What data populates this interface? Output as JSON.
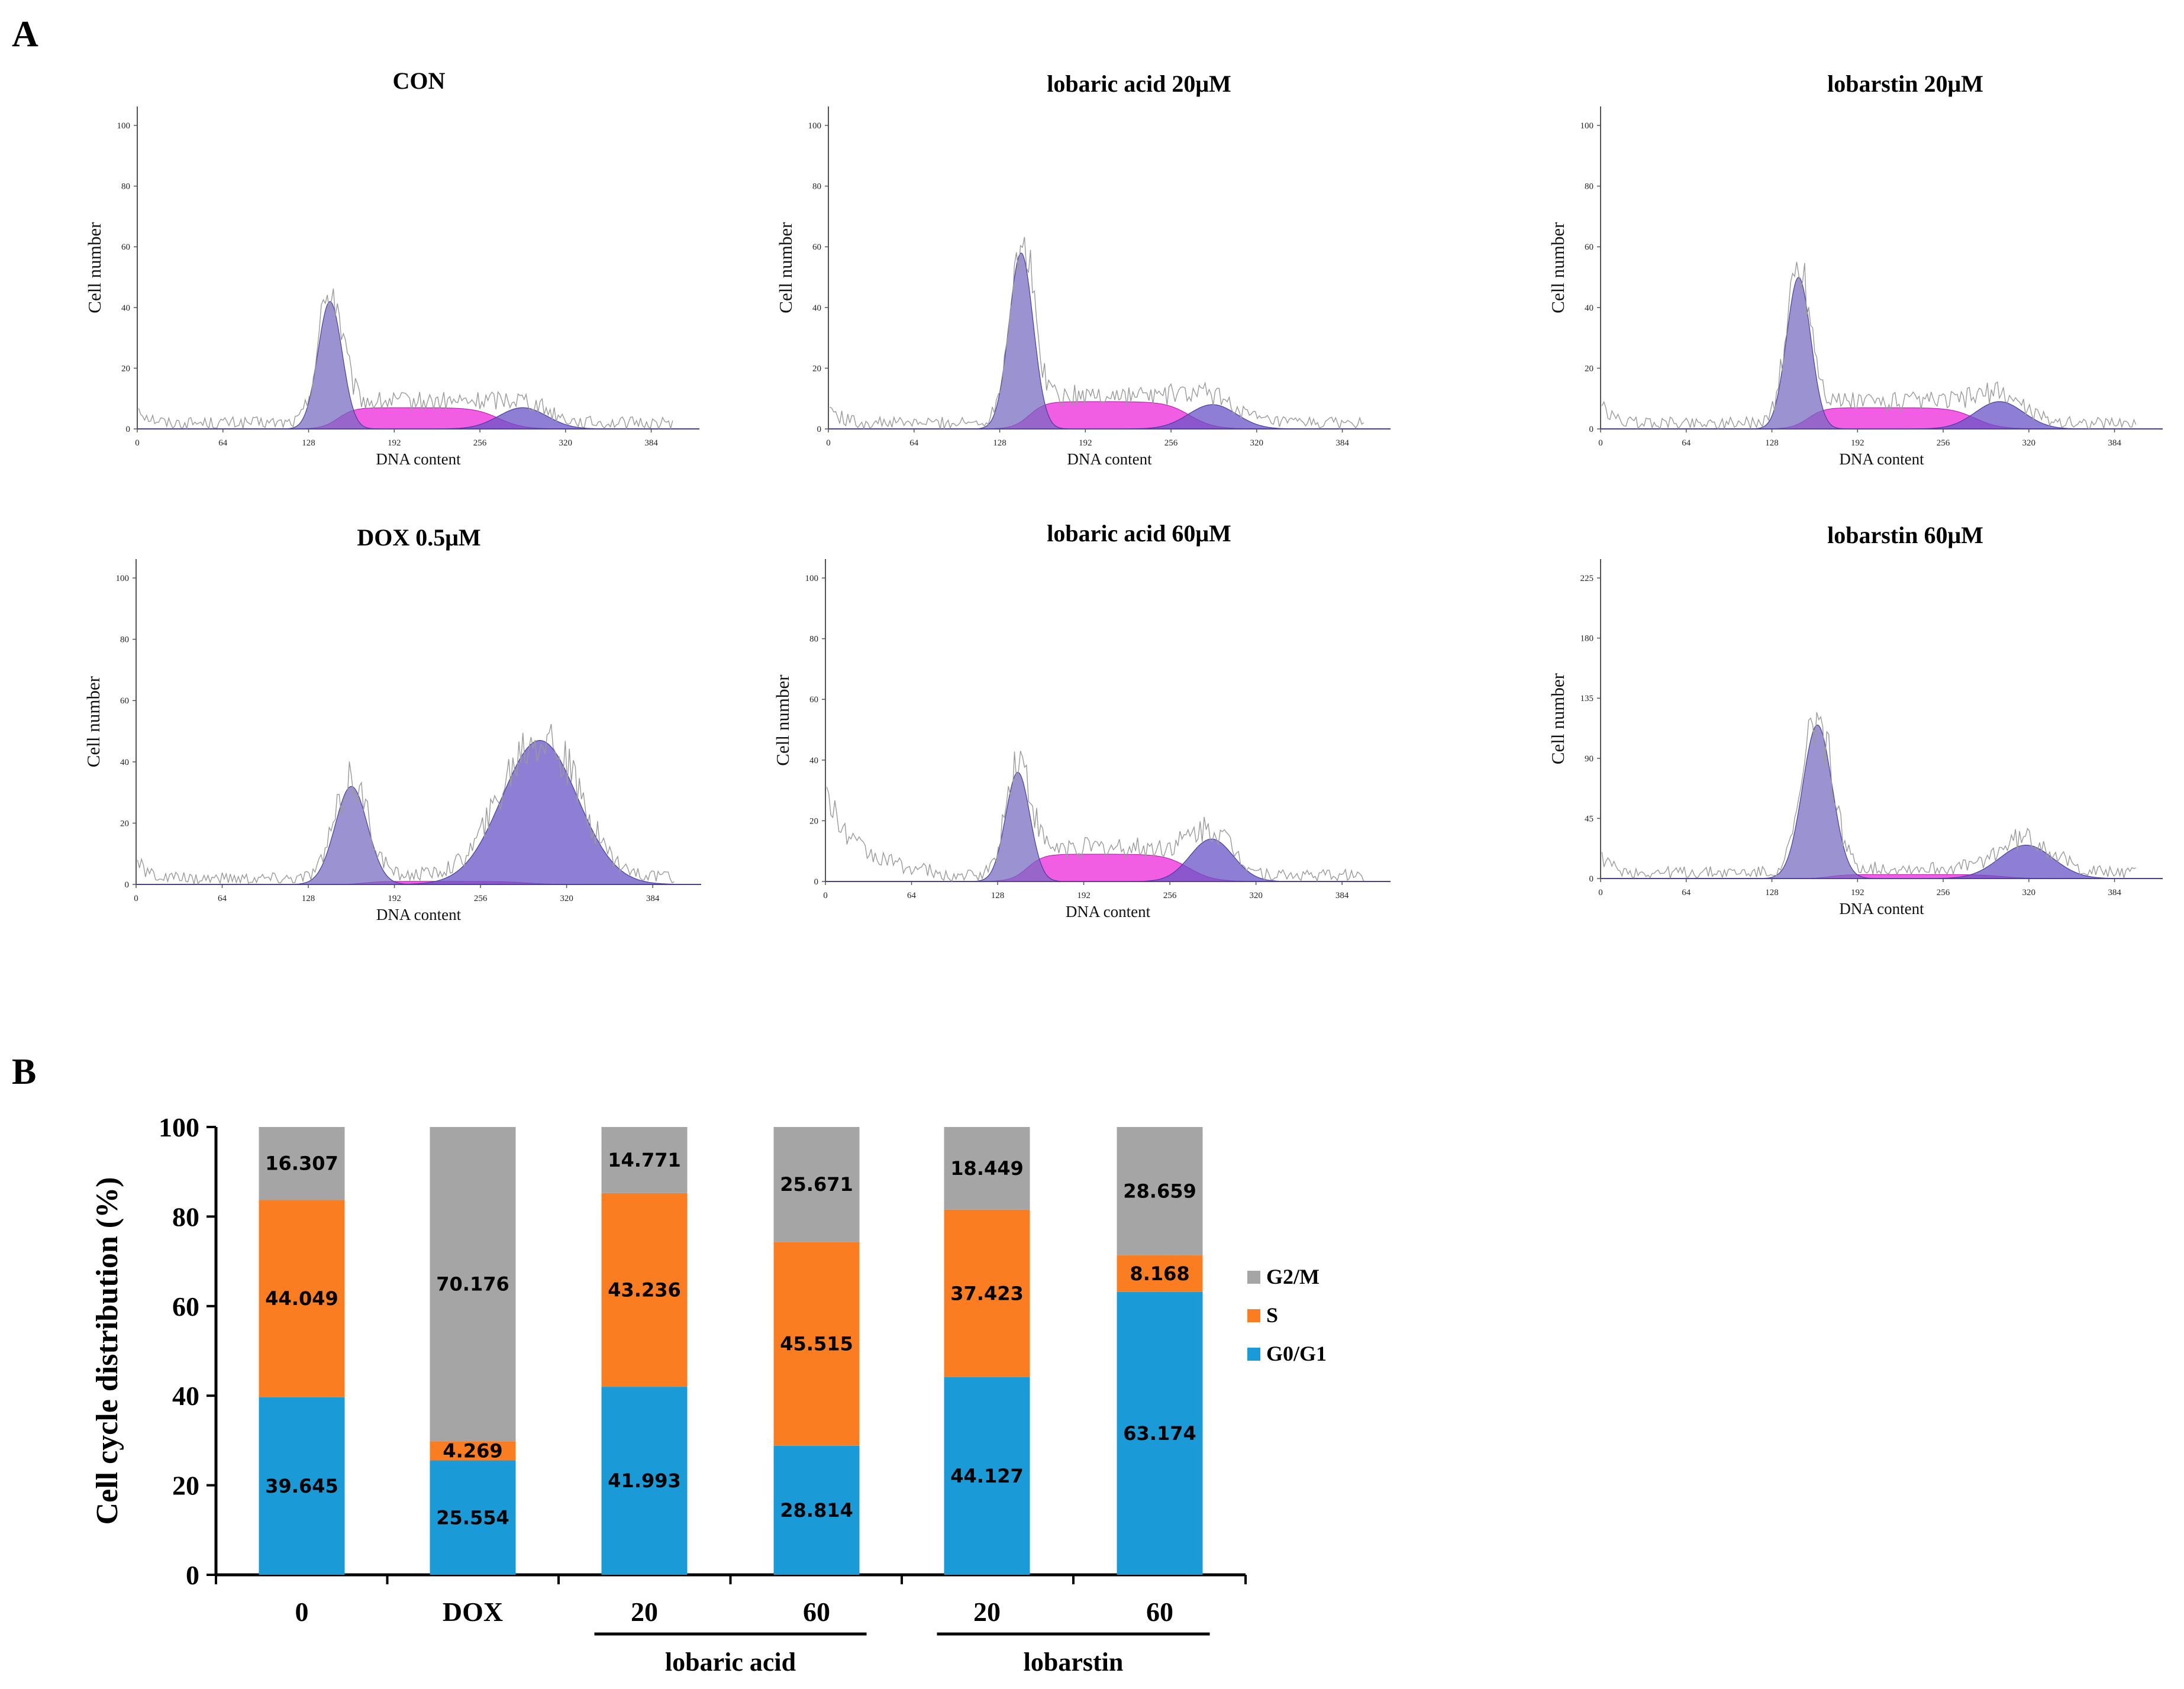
{
  "figure": {
    "panel_a_label": "A",
    "panel_b_label": "B"
  },
  "chart_data": [
    {
      "type": "line",
      "title": "CON",
      "xlabel": "DNA content",
      "ylabel": "Cell number",
      "xticks": [
        "0",
        "64",
        "128",
        "192",
        "256",
        "320",
        "384"
      ],
      "yticks": [
        "0",
        "20",
        "40",
        "60",
        "80",
        "100"
      ],
      "xlim": [
        0,
        420
      ],
      "ylim": [
        0,
        100
      ],
      "components": [
        {
          "phase": "G0/G1",
          "center": 144,
          "height": 42,
          "width": 9
        },
        {
          "phase": "S",
          "start": 150,
          "end": 270,
          "height": 7
        },
        {
          "phase": "G2/M",
          "center": 288,
          "height": 7,
          "width": 18
        }
      ]
    },
    {
      "type": "line",
      "title": "lobaric acid 20μM",
      "xlabel": "DNA content",
      "ylabel": "Cell number",
      "xticks": [
        "0",
        "64",
        "128",
        "192",
        "256",
        "320",
        "384"
      ],
      "yticks": [
        "0",
        "20",
        "40",
        "60",
        "80",
        "100"
      ],
      "xlim": [
        0,
        420
      ],
      "ylim": [
        0,
        100
      ],
      "components": [
        {
          "phase": "G0/G1",
          "center": 144,
          "height": 58,
          "width": 9
        },
        {
          "phase": "S",
          "start": 150,
          "end": 270,
          "height": 9
        },
        {
          "phase": "G2/M",
          "center": 287,
          "height": 8,
          "width": 18
        }
      ]
    },
    {
      "type": "line",
      "title": "lobarstin 20μM",
      "xlabel": "DNA content",
      "ylabel": "Cell number",
      "xticks": [
        "0",
        "64",
        "128",
        "192",
        "256",
        "320",
        "384"
      ],
      "yticks": [
        "0",
        "20",
        "40",
        "60",
        "80",
        "100"
      ],
      "xlim": [
        0,
        420
      ],
      "ylim": [
        0,
        100
      ],
      "components": [
        {
          "phase": "G0/G1",
          "center": 148,
          "height": 50,
          "width": 9
        },
        {
          "phase": "S",
          "start": 155,
          "end": 280,
          "height": 7
        },
        {
          "phase": "G2/M",
          "center": 298,
          "height": 9,
          "width": 18
        }
      ]
    },
    {
      "type": "line",
      "title": "DOX 0.5μM",
      "xlabel": "DNA content",
      "ylabel": "Cell number",
      "xticks": [
        "0",
        "64",
        "128",
        "192",
        "256",
        "320",
        "384"
      ],
      "yticks": [
        "0",
        "20",
        "40",
        "60",
        "80",
        "100"
      ],
      "xlim": [
        0,
        420
      ],
      "ylim": [
        0,
        100
      ],
      "components": [
        {
          "phase": "G0/G1",
          "center": 160,
          "height": 32,
          "width": 12
        },
        {
          "phase": "S",
          "start": 170,
          "end": 290,
          "height": 1
        },
        {
          "phase": "G2/M",
          "center": 300,
          "height": 47,
          "width": 28
        }
      ]
    },
    {
      "type": "line",
      "title": "lobaric acid 60μM",
      "xlabel": "DNA content",
      "ylabel": "Cell number",
      "xticks": [
        "0",
        "64",
        "128",
        "192",
        "256",
        "320",
        "384"
      ],
      "yticks": [
        "0",
        "20",
        "40",
        "60",
        "80",
        "100"
      ],
      "xlim": [
        0,
        420
      ],
      "ylim": [
        0,
        100
      ],
      "components": [
        {
          "phase": "G0/G1",
          "center": 143,
          "height": 36,
          "width": 9
        },
        {
          "phase": "S",
          "start": 150,
          "end": 270,
          "height": 9
        },
        {
          "phase": "G2/M",
          "center": 287,
          "height": 14,
          "width": 16
        }
      ]
    },
    {
      "type": "line",
      "title": "lobarstin 60μM",
      "xlabel": "DNA content",
      "ylabel": "Cell number",
      "xticks": [
        "0",
        "64",
        "128",
        "192",
        "256",
        "320",
        "384"
      ],
      "yticks": [
        "0",
        "45",
        "90",
        "135",
        "180",
        "225"
      ],
      "xlim": [
        0,
        420
      ],
      "ylim": [
        0,
        225
      ],
      "components": [
        {
          "phase": "G0/G1",
          "center": 162,
          "height": 115,
          "width": 11
        },
        {
          "phase": "S",
          "start": 172,
          "end": 300,
          "height": 3
        },
        {
          "phase": "G2/M",
          "center": 318,
          "height": 25,
          "width": 20
        }
      ]
    },
    {
      "type": "bar",
      "stacked": true,
      "ylabel": "Cell cycle distribution (%)",
      "xlabel": "",
      "ylim": [
        0,
        100
      ],
      "yticks": [
        "0",
        "20",
        "40",
        "60",
        "80",
        "100"
      ],
      "categories": [
        "0",
        "DOX",
        "20",
        "60",
        "20",
        "60"
      ],
      "groups": [
        {
          "label": "lobaric acid",
          "categories": [
            2,
            3
          ]
        },
        {
          "label": "lobarstin",
          "categories": [
            4,
            5
          ]
        }
      ],
      "series": [
        {
          "name": "G0/G1",
          "color": "#1a9bd7",
          "values": [
            39.645,
            25.554,
            41.993,
            28.814,
            44.127,
            63.174
          ]
        },
        {
          "name": "S",
          "color": "#fb7d22",
          "values": [
            44.049,
            4.269,
            43.236,
            45.515,
            37.423,
            8.168
          ]
        },
        {
          "name": "G2/M",
          "color": "#a5a5a5",
          "values": [
            16.307,
            70.176,
            14.771,
            25.671,
            18.449,
            28.659
          ]
        }
      ],
      "legend": [
        "G2/M",
        "S",
        "G0/G1"
      ],
      "legend_position": "right"
    }
  ]
}
